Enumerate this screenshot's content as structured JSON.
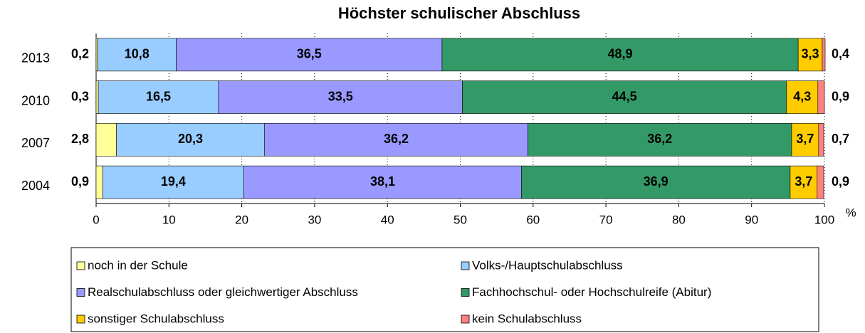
{
  "chart_data": {
    "type": "stacked-bar-horizontal",
    "title": "Höchster schulischer Abschluss",
    "categories": [
      "2013",
      "2010",
      "2007",
      "2004"
    ],
    "xlabel": "%",
    "xlim": [
      0,
      100
    ],
    "xticks": [
      0,
      10,
      20,
      30,
      40,
      50,
      60,
      70,
      80,
      90,
      100
    ],
    "grid": true,
    "series": [
      {
        "name": "noch in der Schule",
        "color": "#ffff99",
        "values": [
          0.2,
          0.3,
          2.8,
          0.9
        ],
        "value_labels": [
          "0,2",
          "0,3",
          "2,8",
          "0,9"
        ]
      },
      {
        "name": "Volks-/Hauptschulabschluss",
        "color": "#99ccff",
        "values": [
          10.8,
          16.5,
          20.3,
          19.4
        ],
        "value_labels": [
          "10,8",
          "16,5",
          "20,3",
          "19,4"
        ]
      },
      {
        "name": "Realschulabschluss oder gleichwertiger Abschluss",
        "color": "#9999ff",
        "values": [
          36.5,
          33.5,
          36.2,
          38.1
        ],
        "value_labels": [
          "36,5",
          "33,5",
          "36,2",
          "38,1"
        ]
      },
      {
        "name": "Fachhochschul- oder Hochschulreife (Abitur)",
        "color": "#339966",
        "values": [
          48.9,
          44.5,
          36.2,
          36.9
        ],
        "value_labels": [
          "48,9",
          "44,5",
          "36,2",
          "36,9"
        ]
      },
      {
        "name": "sonstiger Schulabschluss",
        "color": "#ffcc00",
        "values": [
          3.3,
          4.3,
          3.7,
          3.7
        ],
        "value_labels": [
          "3,3",
          "4,3",
          "3,7",
          "3,7"
        ]
      },
      {
        "name": "kein Schulabschluss",
        "color": "#ff8080",
        "values": [
          0.4,
          0.9,
          0.7,
          0.9
        ],
        "value_labels": [
          "0,4",
          "0,9",
          "0,7",
          "0,9"
        ]
      }
    ]
  }
}
